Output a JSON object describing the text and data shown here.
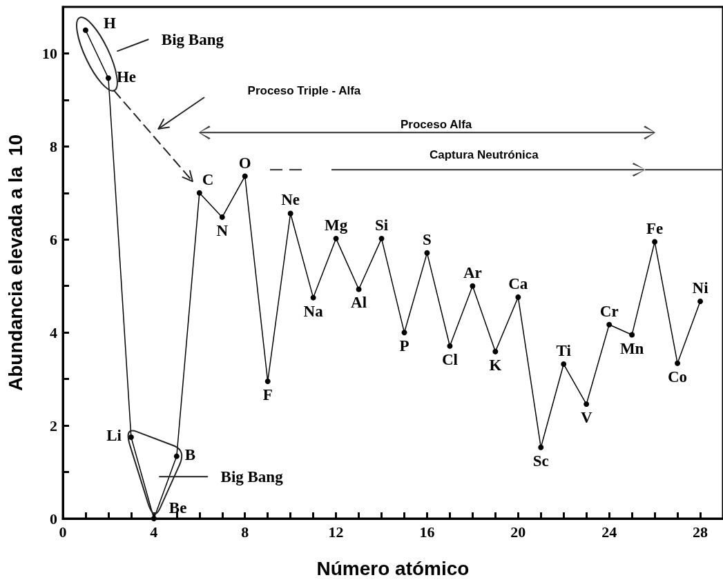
{
  "chart_data": {
    "type": "line",
    "xlabel": "Número atómico",
    "ylabel": "Abundancia elevada a la  10",
    "x": [
      1,
      2,
      3,
      4,
      5,
      6,
      7,
      8,
      9,
      10,
      11,
      12,
      13,
      14,
      15,
      16,
      17,
      18,
      19,
      20,
      21,
      22,
      23,
      24,
      25,
      26,
      27,
      28
    ],
    "series": [
      {
        "color": "#000000",
        "values": [
          10.5,
          9.47,
          1.75,
          0,
          1.34,
          7.0,
          6.48,
          7.36,
          2.95,
          6.56,
          4.75,
          6.02,
          4.93,
          6.02,
          4.0,
          5.71,
          3.71,
          5.0,
          3.59,
          4.76,
          1.53,
          3.32,
          2.46,
          4.17,
          3.95,
          5.95,
          3.34,
          4.67
        ]
      }
    ],
    "marker": "circle",
    "line_style": "solid",
    "xlim": [
      0,
      29
    ],
    "xticks": [
      0,
      {
        "value": 1,
        "label": null
      },
      {
        "value": 2,
        "label": null
      },
      {
        "value": 3,
        "label": null
      },
      4,
      {
        "value": 5,
        "label": null
      },
      {
        "value": 6,
        "label": null
      },
      {
        "value": 7,
        "label": null
      },
      8,
      {
        "value": 9,
        "label": null
      },
      {
        "value": 10,
        "label": null
      },
      {
        "value": 11,
        "label": null
      },
      12,
      {
        "value": 13,
        "label": null
      },
      {
        "value": 14,
        "label": null
      },
      {
        "value": 15,
        "label": null
      },
      16,
      {
        "value": 17,
        "label": null
      },
      {
        "value": 18,
        "label": null
      },
      {
        "value": 19,
        "label": null
      },
      20,
      {
        "value": 21,
        "label": null
      },
      {
        "value": 22,
        "label": null
      },
      {
        "value": 23,
        "label": null
      },
      24,
      {
        "value": 25,
        "label": null
      },
      {
        "value": 26,
        "label": null
      },
      {
        "value": 27,
        "label": null
      },
      28
    ],
    "ylim": [
      0,
      11
    ],
    "yticks": [
      0,
      {
        "value": 1,
        "label": null
      },
      2,
      {
        "value": 3,
        "label": null
      },
      4,
      {
        "value": 5,
        "label": null
      },
      6,
      {
        "value": 7,
        "label": null
      },
      8,
      {
        "value": 9,
        "label": null
      },
      10
    ],
    "annotations": [
      {
        "text": "H",
        "x": 1,
        "y": 10.5
      },
      {
        "text": "He",
        "x": 2,
        "y": 9.47
      },
      {
        "text": "Li",
        "x": 3,
        "y": 1.75
      },
      {
        "text": "Be",
        "x": 4,
        "y": 0
      },
      {
        "text": "B",
        "x": 5,
        "y": 1.34
      },
      {
        "text": "C",
        "x": 6,
        "y": 7.0
      },
      {
        "text": "N",
        "x": 7,
        "y": 6.48
      },
      {
        "text": "O",
        "x": 8,
        "y": 7.36
      },
      {
        "text": "F",
        "x": 9,
        "y": 2.95
      },
      {
        "text": "Ne",
        "x": 10,
        "y": 6.56
      },
      {
        "text": "Na",
        "x": 11,
        "y": 4.75
      },
      {
        "text": "Mg",
        "x": 12,
        "y": 6.02
      },
      {
        "text": "Al",
        "x": 13,
        "y": 4.93
      },
      {
        "text": "Si",
        "x": 14,
        "y": 6.02
      },
      {
        "text": "P",
        "x": 15,
        "y": 4.0
      },
      {
        "text": "S",
        "x": 16,
        "y": 5.71
      },
      {
        "text": "Cl",
        "x": 17,
        "y": 3.71
      },
      {
        "text": "Ar",
        "x": 18,
        "y": 5.0
      },
      {
        "text": "K",
        "x": 19,
        "y": 3.59
      },
      {
        "text": "Ca",
        "x": 20,
        "y": 4.76
      },
      {
        "text": "Sc",
        "x": 21,
        "y": 1.53
      },
      {
        "text": "Ti",
        "x": 22,
        "y": 3.32
      },
      {
        "text": "V",
        "x": 23,
        "y": 2.46
      },
      {
        "text": "Cr",
        "x": 24,
        "y": 4.17
      },
      {
        "text": "Mn",
        "x": 25,
        "y": 3.95
      },
      {
        "text": "Fe",
        "x": 26,
        "y": 5.95
      },
      {
        "text": "Co",
        "x": 27,
        "y": 3.34
      },
      {
        "text": "Ni",
        "x": 28,
        "y": 4.67
      },
      "Big Bang",
      "Big Bang",
      "Proceso Triple - Alfa",
      "Proceso Alfa",
      "Captura Neutrónica"
    ]
  }
}
